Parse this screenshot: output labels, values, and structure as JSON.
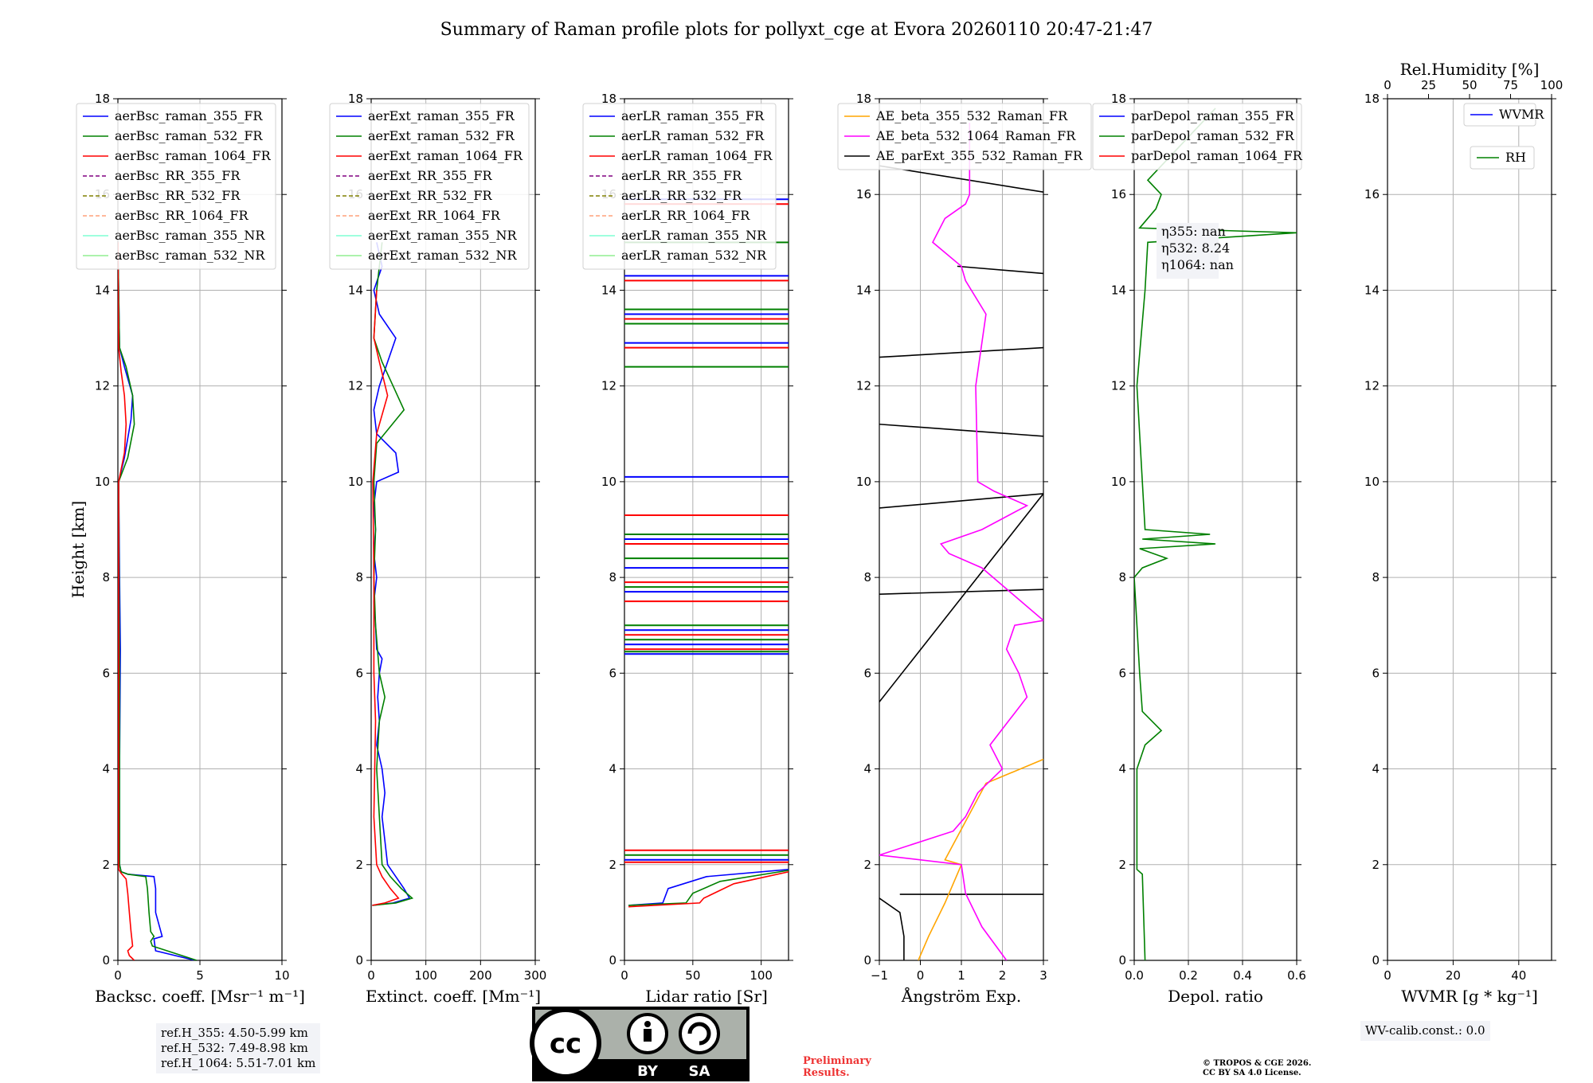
{
  "title": "Summary of Raman profile plots for pollyxt_cge at Evora 20260110 20:47-21:47",
  "ylabel": "Height [km]",
  "yticks": [
    "0",
    "2",
    "4",
    "6",
    "8",
    "10",
    "12",
    "14",
    "16",
    "18"
  ],
  "colors": {
    "c355": "#0000ff",
    "c532": "#008000",
    "c1064": "#ff0000",
    "rr355": "#800080",
    "rr532": "#808000",
    "rr1064": "#ffa07a",
    "nr355": "#7fffd4",
    "nr532": "#90ee90",
    "orange": "#ffa500",
    "magenta": "#ff00ff",
    "black": "#000000"
  },
  "chart_data": [
    {
      "type": "line",
      "id": "bsc",
      "xlabel": "Backsc. coeff. [Msr⁻¹ m⁻¹]",
      "xlim": [
        0,
        10
      ],
      "xticks": [
        "0",
        "5",
        "10"
      ],
      "ylim": [
        0,
        18
      ],
      "legend": [
        "aerBsc_raman_355_FR",
        "aerBsc_raman_532_FR",
        "aerBsc_raman_1064_FR",
        "aerBsc_RR_355_FR",
        "aerBsc_RR_532_FR",
        "aerBsc_RR_1064_FR",
        "aerBsc_raman_355_NR",
        "aerBsc_raman_532_NR"
      ],
      "series": [
        {
          "name": "aerBsc_raman_355_FR",
          "color": "c355",
          "points": [
            [
              4.7,
              0
            ],
            [
              2.3,
              0.2
            ],
            [
              2.2,
              0.45
            ],
            [
              2.7,
              0.5
            ],
            [
              2.3,
              1
            ],
            [
              2.3,
              1.5
            ],
            [
              2.2,
              1.75
            ],
            [
              0.6,
              1.8
            ],
            [
              0.2,
              1.85
            ],
            [
              0.1,
              2
            ],
            [
              0.1,
              4
            ],
            [
              0.15,
              6.5
            ],
            [
              0.1,
              8
            ],
            [
              0.05,
              10
            ],
            [
              0.4,
              10.5
            ],
            [
              0.8,
              11.3
            ],
            [
              0.9,
              11.8
            ],
            [
              0.4,
              12.4
            ],
            [
              0.1,
              12.8
            ],
            [
              0,
              15
            ]
          ]
        },
        {
          "name": "aerBsc_raman_532_FR",
          "color": "c532",
          "points": [
            [
              4.8,
              0
            ],
            [
              2.1,
              0.3
            ],
            [
              2.0,
              0.4
            ],
            [
              2.2,
              0.5
            ],
            [
              2.0,
              0.6
            ],
            [
              1.9,
              1
            ],
            [
              1.8,
              1.5
            ],
            [
              1.7,
              1.75
            ],
            [
              0.6,
              1.8
            ],
            [
              0.2,
              1.85
            ],
            [
              0.1,
              2
            ],
            [
              0.1,
              6
            ],
            [
              0.05,
              10
            ],
            [
              0.6,
              10.5
            ],
            [
              1.0,
              11.2
            ],
            [
              0.9,
              11.8
            ],
            [
              0.5,
              12.4
            ],
            [
              0.1,
              12.8
            ],
            [
              0,
              15
            ]
          ]
        },
        {
          "name": "aerBsc_raman_1064_FR",
          "color": "c1064",
          "points": [
            [
              1.0,
              0
            ],
            [
              0.7,
              0.1
            ],
            [
              0.6,
              0.2
            ],
            [
              0.9,
              0.3
            ],
            [
              0.8,
              0.6
            ],
            [
              0.7,
              1
            ],
            [
              0.6,
              1.4
            ],
            [
              0.5,
              1.7
            ],
            [
              0.2,
              1.82
            ],
            [
              0.05,
              1.9
            ],
            [
              0.05,
              10
            ],
            [
              0.4,
              10.6
            ],
            [
              0.5,
              11.2
            ],
            [
              0.4,
              11.8
            ],
            [
              0.2,
              12.3
            ],
            [
              0.05,
              12.8
            ],
            [
              0,
              15
            ]
          ]
        }
      ]
    },
    {
      "type": "line",
      "id": "ext",
      "xlabel": "Extinct. coeff. [Mm⁻¹]",
      "xlim": [
        0,
        300
      ],
      "xticks": [
        "0",
        "100",
        "200",
        "300"
      ],
      "ylim": [
        0,
        18
      ],
      "legend": [
        "aerExt_raman_355_FR",
        "aerExt_raman_532_FR",
        "aerExt_raman_1064_FR",
        "aerExt_RR_355_FR",
        "aerExt_RR_532_FR",
        "aerExt_RR_1064_FR",
        "aerExt_raman_355_NR",
        "aerExt_raman_532_NR"
      ],
      "series": [
        {
          "name": "aerExt_raman_355_FR",
          "color": "c355",
          "points": [
            [
              2,
              1.15
            ],
            [
              40,
              1.2
            ],
            [
              70,
              1.3
            ],
            [
              60,
              1.5
            ],
            [
              45,
              1.75
            ],
            [
              30,
              2
            ],
            [
              25,
              2.5
            ],
            [
              20,
              3
            ],
            [
              25,
              3.5
            ],
            [
              20,
              4
            ],
            [
              10,
              4.5
            ],
            [
              15,
              5
            ],
            [
              12,
              5.5
            ],
            [
              15,
              6
            ],
            [
              20,
              6.3
            ],
            [
              10,
              6.5
            ],
            [
              8,
              7
            ],
            [
              5,
              7.5
            ],
            [
              10,
              8
            ],
            [
              5,
              8.5
            ],
            [
              8,
              9
            ],
            [
              5,
              9.5
            ],
            [
              10,
              10
            ],
            [
              50,
              10.2
            ],
            [
              45,
              10.6
            ],
            [
              10,
              11
            ],
            [
              5,
              11.5
            ],
            [
              15,
              12
            ],
            [
              30,
              12.5
            ],
            [
              45,
              13
            ],
            [
              15,
              13.5
            ],
            [
              5,
              14
            ],
            [
              20,
              14.5
            ],
            [
              10,
              15
            ]
          ]
        },
        {
          "name": "aerExt_raman_532_FR",
          "color": "c532",
          "points": [
            [
              2,
              1.15
            ],
            [
              45,
              1.2
            ],
            [
              75,
              1.3
            ],
            [
              55,
              1.5
            ],
            [
              35,
              1.75
            ],
            [
              20,
              2
            ],
            [
              15,
              3
            ],
            [
              10,
              4
            ],
            [
              15,
              5
            ],
            [
              25,
              5.5
            ],
            [
              15,
              6
            ],
            [
              8,
              7
            ],
            [
              5,
              8
            ],
            [
              8,
              9
            ],
            [
              5,
              10
            ],
            [
              10,
              10.8
            ],
            [
              60,
              11.5
            ],
            [
              40,
              12
            ],
            [
              20,
              12.5
            ],
            [
              5,
              13
            ],
            [
              10,
              14
            ],
            [
              20,
              15
            ]
          ]
        },
        {
          "name": "aerExt_raman_1064_FR",
          "color": "c1064",
          "points": [
            [
              2,
              1.15
            ],
            [
              25,
              1.2
            ],
            [
              50,
              1.3
            ],
            [
              35,
              1.5
            ],
            [
              20,
              1.75
            ],
            [
              10,
              2
            ],
            [
              5,
              3
            ],
            [
              8,
              5
            ],
            [
              5,
              6
            ],
            [
              5,
              8
            ],
            [
              3,
              10
            ],
            [
              10,
              11
            ],
            [
              30,
              11.8
            ],
            [
              15,
              12.5
            ],
            [
              5,
              13
            ],
            [
              10,
              14
            ]
          ]
        }
      ]
    },
    {
      "type": "line",
      "id": "lr",
      "xlabel": "Lidar ratio [Sr]",
      "xlim": [
        0,
        120
      ],
      "xticks": [
        "0",
        "50",
        "100"
      ],
      "ylim": [
        0,
        18
      ],
      "legend": [
        "aerLR_raman_355_FR",
        "aerLR_raman_532_FR",
        "aerLR_raman_1064_FR",
        "aerLR_RR_355_FR",
        "aerLR_RR_532_FR",
        "aerLR_RR_1064_FR",
        "aerLR_raman_355_NR",
        "aerLR_raman_532_NR"
      ],
      "series": [
        {
          "name": "aerLR_raman_355_FR",
          "color": "c355",
          "points": [
            [
              3,
              1.15
            ],
            [
              28,
              1.2
            ],
            [
              32,
              1.5
            ],
            [
              60,
              1.75
            ],
            [
              120,
              1.9
            ]
          ]
        },
        {
          "name": "aerLR_raman_532_FR",
          "color": "c532",
          "points": [
            [
              3,
              1.15
            ],
            [
              45,
              1.2
            ],
            [
              50,
              1.4
            ],
            [
              70,
              1.65
            ],
            [
              120,
              1.88
            ]
          ]
        },
        {
          "name": "aerLR_raman_1064_FR",
          "color": "c1064",
          "points": [
            [
              3,
              1.12
            ],
            [
              55,
              1.2
            ],
            [
              58,
              1.3
            ],
            [
              80,
              1.6
            ],
            [
              120,
              1.85
            ]
          ]
        }
      ]
    },
    {
      "type": "line",
      "id": "ae",
      "xlabel": "Ångström Exp.",
      "xlim": [
        -1,
        3
      ],
      "xticks": [
        "−1",
        "0",
        "1",
        "2",
        "3"
      ],
      "ylim": [
        0,
        18
      ],
      "legend": [
        "AE_beta_355_532_Raman_FR",
        "AE_beta_532_1064_Raman_FR",
        "AE_parExt_355_532_Raman_FR"
      ],
      "series": [
        {
          "name": "AE_beta_355_532_Raman_FR",
          "color": "orange",
          "points": [
            [
              -0.05,
              0
            ],
            [
              0.2,
              0.5
            ],
            [
              0.6,
              1.2
            ],
            [
              1.0,
              2
            ],
            [
              0.6,
              2.1
            ],
            [
              1.6,
              3.7
            ],
            [
              3,
              4.2
            ]
          ]
        },
        {
          "name": "AE_beta_532_1064_Raman_FR",
          "color": "magenta",
          "points": [
            [
              2.1,
              0
            ],
            [
              1.5,
              0.7
            ],
            [
              1.1,
              1.4
            ],
            [
              1.0,
              2
            ],
            [
              -1,
              2.2
            ],
            [
              0.8,
              2.7
            ],
            [
              1.1,
              3
            ],
            [
              1.4,
              3.5
            ],
            [
              2,
              4
            ],
            [
              1.7,
              4.5
            ],
            [
              2.6,
              5.5
            ],
            [
              2.4,
              6
            ],
            [
              2.1,
              6.5
            ],
            [
              2.3,
              7
            ],
            [
              3,
              7.1
            ],
            [
              1.5,
              8.2
            ],
            [
              0.7,
              8.5
            ],
            [
              0.5,
              8.7
            ],
            [
              1.5,
              9
            ],
            [
              2.6,
              9.5
            ],
            [
              1.8,
              9.8
            ],
            [
              1.4,
              10
            ],
            [
              1.35,
              12
            ],
            [
              1.6,
              13.5
            ],
            [
              1.1,
              14.2
            ],
            [
              1.0,
              14.5
            ],
            [
              0.3,
              15
            ],
            [
              0.6,
              15.5
            ],
            [
              1.1,
              15.8
            ],
            [
              1.2,
              16
            ],
            [
              1.2,
              17.5
            ]
          ]
        },
        {
          "name": "AE_parExt_355_532_Raman_FR",
          "color": "black",
          "points": [
            [
              -0.4,
              0
            ],
            [
              -0.4,
              0.5
            ],
            [
              -0.5,
              1
            ],
            [
              -1,
              1.3
            ]
          ]
        }
      ]
    },
    {
      "type": "line",
      "id": "dep",
      "xlabel": "Depol. ratio",
      "xlim": [
        0,
        0.6
      ],
      "xticks": [
        "0.0",
        "0.2",
        "0.4",
        "0.6"
      ],
      "ylim": [
        0,
        18
      ],
      "legend": [
        "parDepol_raman_355_FR",
        "parDepol_raman_532_FR",
        "parDepol_raman_1064_FR"
      ],
      "series": [
        {
          "name": "parDepol_raman_532_FR",
          "color": "c532",
          "points": [
            [
              0.04,
              0
            ],
            [
              0.03,
              1.8
            ],
            [
              0.01,
              1.9
            ],
            [
              0.01,
              4
            ],
            [
              0.04,
              4.5
            ],
            [
              0.1,
              4.8
            ],
            [
              0.03,
              5.2
            ],
            [
              0.02,
              6
            ],
            [
              0.01,
              7
            ],
            [
              0,
              8
            ],
            [
              0.03,
              8.2
            ],
            [
              0.12,
              8.4
            ],
            [
              0.02,
              8.6
            ],
            [
              0.3,
              8.7
            ],
            [
              0.03,
              8.8
            ],
            [
              0.28,
              8.9
            ],
            [
              0.04,
              9
            ],
            [
              0.03,
              10
            ],
            [
              0.01,
              12
            ],
            [
              0.04,
              14
            ],
            [
              0.05,
              15
            ],
            [
              0.6,
              15.2
            ],
            [
              0.02,
              15.3
            ],
            [
              0.08,
              15.7
            ],
            [
              0.1,
              16
            ],
            [
              0.05,
              16.3
            ],
            [
              0.3,
              17.8
            ]
          ]
        }
      ]
    },
    {
      "type": "line",
      "id": "wv",
      "xlabel": "WVMR [g * kg⁻¹]",
      "xlim": [
        0,
        50
      ],
      "xticks": [
        "0",
        "20",
        "40"
      ],
      "ylim": [
        0,
        18
      ],
      "top_axis": {
        "label": "Rel.Humidity [%]",
        "ticks": [
          "0",
          "25",
          "50",
          "75",
          "100"
        ]
      },
      "legend": [
        "WVMR",
        "RH"
      ],
      "series": []
    }
  ],
  "annotations": {
    "eta_355": "η355: nan",
    "eta_532": "η532: 8.24",
    "eta_1064": "η1064: nan",
    "ref_355": "ref.H_355: 4.50-5.99 km",
    "ref_532": "ref.H_532: 7.49-8.98 km",
    "ref_1064": "ref.H_1064: 5.51-7.01 km",
    "wv_calib": "WV-calib.const.: 0.0",
    "preliminary": "Preliminary Results.",
    "copyright_1": "© TROPOS & CGE 2026.",
    "copyright_2": "CC BY SA 4.0 License."
  },
  "cc_badge": {
    "cc": "cc",
    "by": "BY",
    "sa": "SA"
  }
}
